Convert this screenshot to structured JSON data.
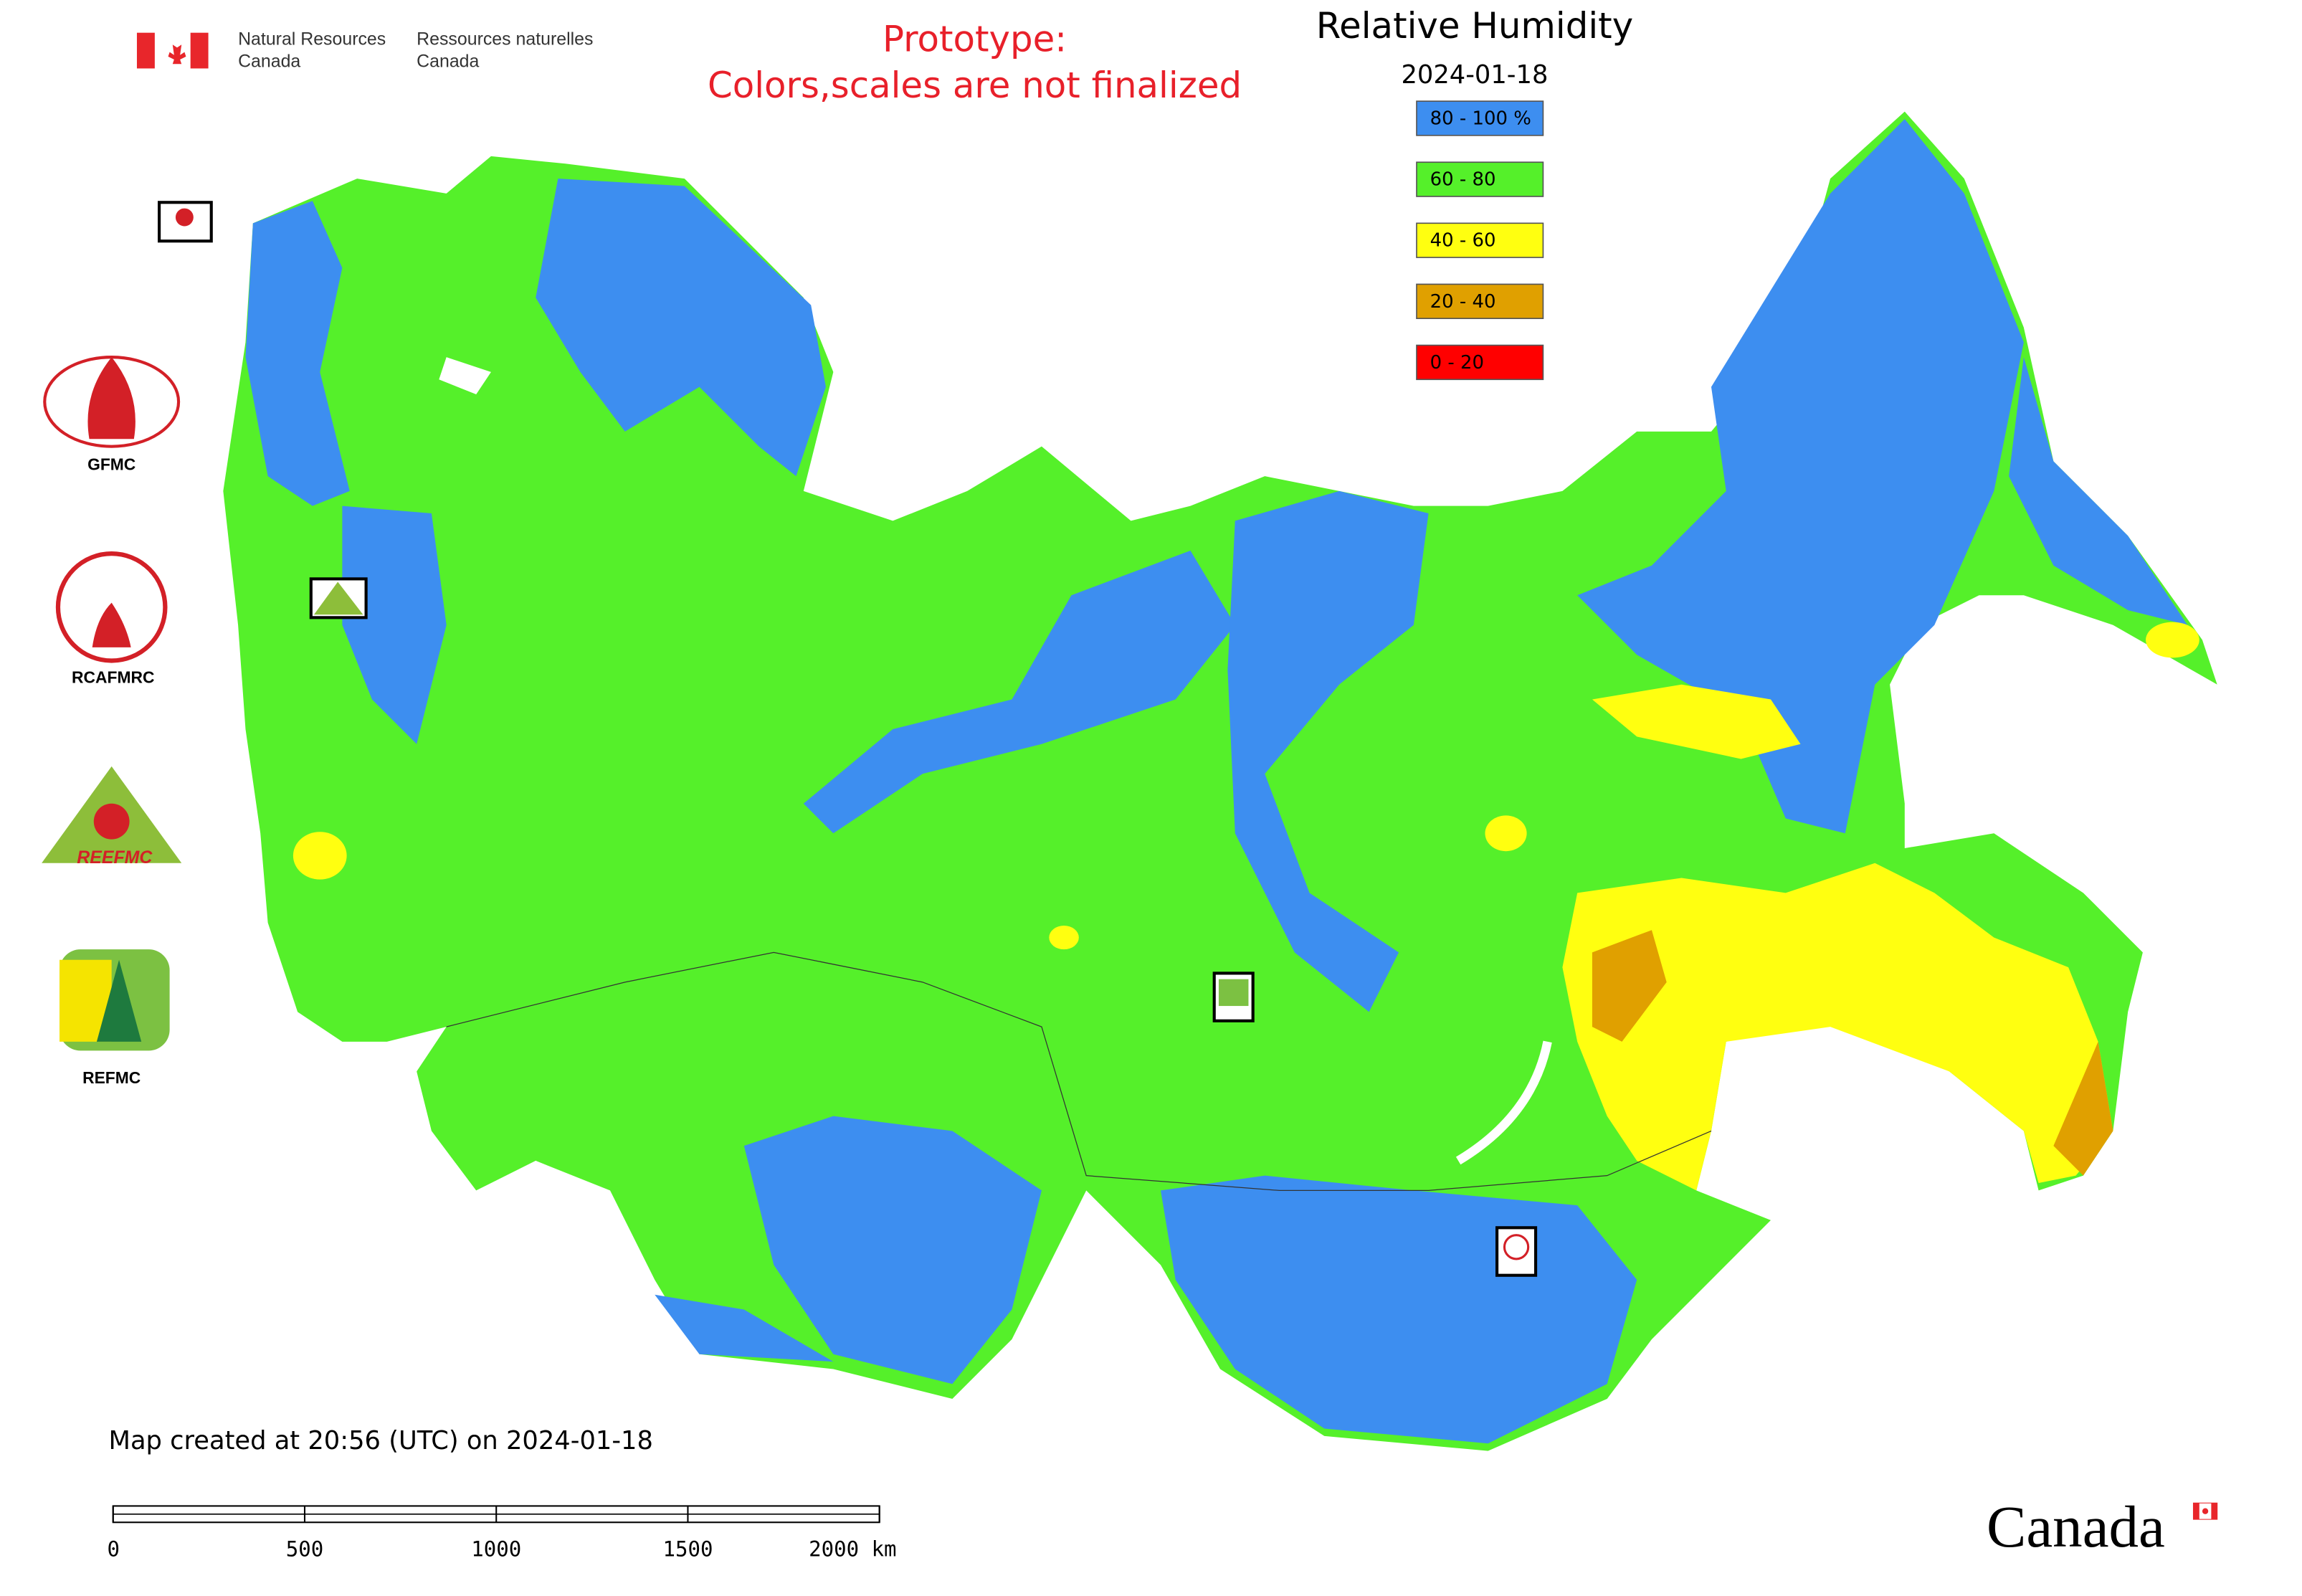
{
  "header": {
    "department_en": [
      "Natural Resources",
      "Canada"
    ],
    "department_fr": [
      "Ressources naturelles",
      "Canada"
    ],
    "notice": [
      "Prototype:",
      "Colors,scales are not finalized"
    ]
  },
  "legend": {
    "title": "Relative Humidity",
    "date": "2024-01-18",
    "items": [
      {
        "label": "80 - 100 %",
        "color": "#3d8ef0"
      },
      {
        "label": "60 - 80",
        "color": "#55f02a"
      },
      {
        "label": "40 - 60",
        "color": "#ffff10"
      },
      {
        "label": "20 - 40",
        "color": "#e0a000"
      },
      {
        "label": "0 - 20",
        "color": "#ff0000"
      }
    ]
  },
  "partners": [
    "GFMC",
    "RCAFMRC",
    "REEFMC",
    "REFMC"
  ],
  "footer": {
    "created": "Map created at 20:56 (UTC) on 2024-01-18",
    "wordmark": "Canada"
  },
  "scale_bar": {
    "ticks": [
      0,
      500,
      1000,
      1500,
      {
        "value": 2000,
        "label": "2000 km"
      }
    ]
  }
}
